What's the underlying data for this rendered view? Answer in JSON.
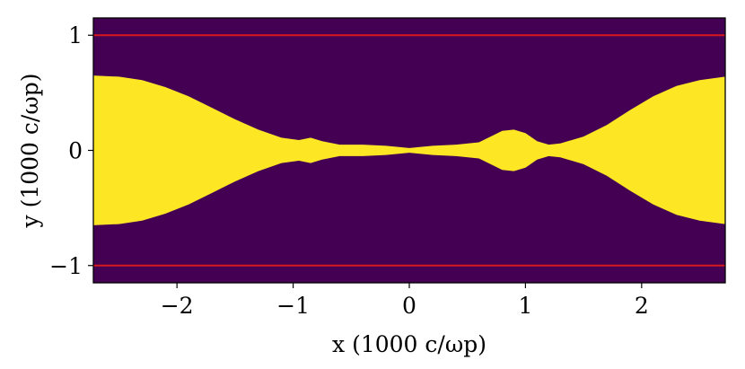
{
  "chart_data": {
    "type": "heatmap",
    "title": "",
    "xlabel": "x (1000 c/ωp)",
    "ylabel": "y (1000 c/ωp)",
    "xlim": [
      -2.72,
      2.72
    ],
    "ylim": [
      -1.15,
      1.15
    ],
    "x_ticks": [
      {
        "value": -2,
        "label": "−2"
      },
      {
        "value": -1,
        "label": "−1"
      },
      {
        "value": 0,
        "label": "0"
      },
      {
        "value": 1,
        "label": "1"
      },
      {
        "value": 2,
        "label": "2"
      }
    ],
    "y_ticks": [
      {
        "value": 1,
        "label": "1"
      },
      {
        "value": 0,
        "label": "0"
      },
      {
        "value": -1,
        "label": "−1"
      }
    ],
    "colors": {
      "background": "#440154",
      "fill": "#fde725",
      "boundary": "#d7191c"
    },
    "boundary_lines_y": [
      1,
      -1
    ],
    "region_half_width": {
      "x": [
        -2.72,
        -2.5,
        -2.3,
        -2.1,
        -1.9,
        -1.7,
        -1.5,
        -1.3,
        -1.1,
        -0.95,
        -0.85,
        -0.75,
        -0.6,
        -0.4,
        -0.2,
        0.0,
        0.2,
        0.4,
        0.6,
        0.7,
        0.8,
        0.9,
        1.0,
        1.1,
        1.2,
        1.3,
        1.5,
        1.7,
        1.9,
        2.1,
        2.3,
        2.5,
        2.72
      ],
      "y": [
        0.65,
        0.64,
        0.61,
        0.55,
        0.47,
        0.37,
        0.27,
        0.18,
        0.11,
        0.09,
        0.11,
        0.08,
        0.05,
        0.05,
        0.04,
        0.02,
        0.04,
        0.05,
        0.07,
        0.12,
        0.17,
        0.18,
        0.15,
        0.08,
        0.05,
        0.06,
        0.12,
        0.22,
        0.35,
        0.47,
        0.56,
        0.61,
        0.64
      ]
    }
  }
}
